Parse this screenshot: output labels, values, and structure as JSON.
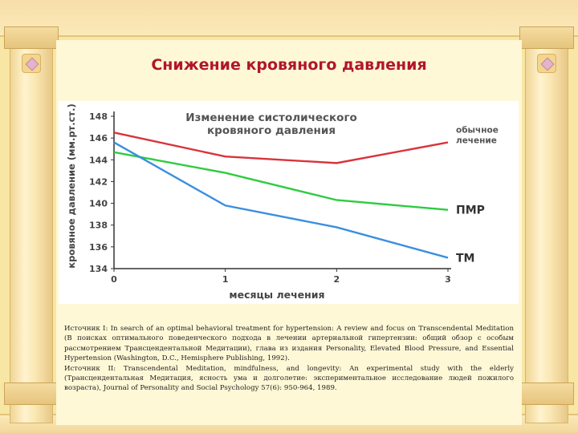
{
  "slide": {
    "title": "Снижение кровяного давления",
    "sources": [
      "Источник I: In search of an optimal behavioral treatment for hypertension: A review and focus on Transcendental Meditation (В поисках оптимального поведенческого подхода в лечении артериальной гипертензии: общий обзор с особым рассмотрением Трансцендентальной Медитации), глава из издания Personality, Elevated Blood Pressure, and Essential Hypertension (Washington, D.C., Hemisphere Publishing, 1992).",
      "Источник II: Transcendental Meditation, mindfulness, and longevity: An experimental study with the elderly (Трансцендентальная Медитация, ясность ума и долголетие: экспериментальное исследование людей пожилого возраста), Journal of Personality and Social Psychology 57(6): 950-964, 1989."
    ]
  },
  "chart_data": {
    "type": "line",
    "title": [
      "Изменение систолического",
      "кровяного давления"
    ],
    "xlabel": "месяцы лечения",
    "ylabel": "кровяное давление (мм.рт.ст.)",
    "x": [
      0,
      1,
      2,
      3
    ],
    "xlim": [
      0,
      3
    ],
    "ylim": [
      134,
      148
    ],
    "yticks": [
      134,
      136,
      138,
      140,
      142,
      144,
      146,
      148
    ],
    "xticks": [
      0,
      1,
      2,
      3
    ],
    "grid": false,
    "series": [
      {
        "name": "обычное лечение",
        "label_lines": [
          "обычное",
          "лечение"
        ],
        "values": [
          146.5,
          144.3,
          143.7,
          145.6
        ],
        "color": "#d9343b"
      },
      {
        "name": "ПМР",
        "label_lines": [
          "ПМР"
        ],
        "values": [
          144.7,
          142.8,
          140.3,
          139.4
        ],
        "color": "#2ecc40"
      },
      {
        "name": "ТМ",
        "label_lines": [
          "ТМ"
        ],
        "values": [
          145.6,
          139.8,
          137.8,
          135.0
        ],
        "color": "#3a8fe0"
      }
    ]
  }
}
